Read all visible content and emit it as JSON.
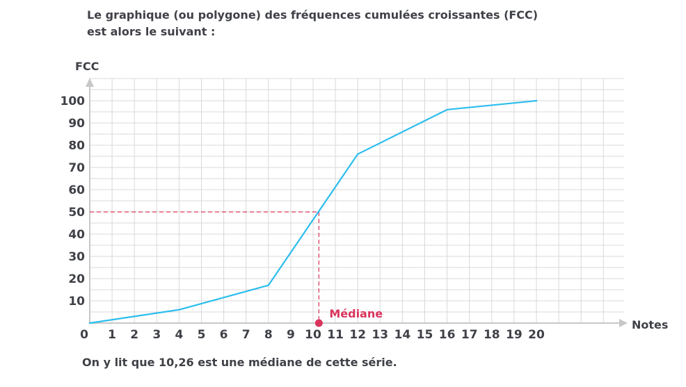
{
  "intro": {
    "line1": "Le graphique (ou polygone) des fréquences cumulées croissantes (FCC)",
    "line2": "est alors le suivant :"
  },
  "conclusion": "On y lit que 10,26 est une médiane de cette série.",
  "chart_data": {
    "type": "line",
    "xlabel": "Notes",
    "ylabel": "FCC",
    "xlim": [
      0,
      24
    ],
    "ylim": [
      0,
      100
    ],
    "x_ticks": [
      0,
      1,
      2,
      3,
      4,
      5,
      6,
      7,
      8,
      9,
      10,
      11,
      12,
      13,
      14,
      15,
      16,
      17,
      18,
      19,
      20
    ],
    "y_ticks": [
      10,
      20,
      30,
      40,
      50,
      60,
      70,
      80,
      90,
      100
    ],
    "grid": true,
    "series": [
      {
        "x": [
          0,
          4,
          8,
          12,
          16,
          20
        ],
        "y": [
          0,
          6,
          17,
          76,
          96,
          100
        ]
      }
    ],
    "annotations": [
      {
        "label": "Médiane",
        "x": 10.26,
        "y": 50
      }
    ],
    "colors": {
      "line": "#2bbdee",
      "median": "#d9345c",
      "grid": "#d8d8d8",
      "axis": "#c8c8c8",
      "text": "#3f4147"
    }
  }
}
